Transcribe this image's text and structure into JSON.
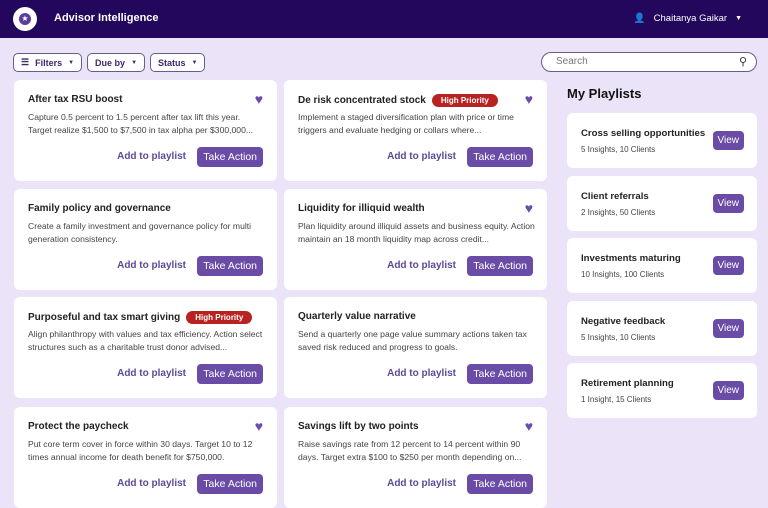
{
  "header": {
    "title": "Advisor Intelligence",
    "user": "Chaitanya Gaikar"
  },
  "toolbar": {
    "filters": "Filters",
    "due_by": "Due by",
    "status": "Status",
    "search_placeholder": "Search"
  },
  "cards": [
    {
      "title": "After tax RSU boost",
      "desc": "Capture 0.5 percent to 1.5 percent after tax lift this year. Target realize $1,500 to $7,500 in tax alpha per $300,000...",
      "badge": "",
      "favorite": true
    },
    {
      "title": "De risk concentrated stock",
      "desc": "Implement a staged diversification plan with price or time triggers and evaluate hedging or collars where...",
      "badge": "High Priority",
      "favorite": true
    },
    {
      "title": "Family policy and governance",
      "desc": "Create a family investment and governance policy for multi generation consistency.",
      "badge": "",
      "favorite": false
    },
    {
      "title": "Liquidity for illiquid wealth",
      "desc": "Plan liquidity around illiquid assets and business equity. Action maintain an 18 month liquidity map across credit...",
      "badge": "",
      "favorite": true
    },
    {
      "title": "Purposeful and tax smart giving",
      "desc": "Align philanthropy with values and tax efficiency. Action select structures such as a charitable trust donor advised...",
      "badge": "High Priority",
      "favorite": false
    },
    {
      "title": "Quarterly value narrative",
      "desc": "Send a quarterly one page value summary actions taken tax saved risk reduced and progress to goals.",
      "badge": "",
      "favorite": false
    },
    {
      "title": "Protect the paycheck",
      "desc": "Put core term cover in force within 30 days. Target 10 to 12 times annual income for death benefit for $750,000.",
      "badge": "",
      "favorite": true
    },
    {
      "title": "Savings lift by two points",
      "desc": "Raise savings rate from 12 percent to 14 percent within 90 days. Target extra $100 to $250 per month depending on...",
      "badge": "",
      "favorite": true
    }
  ],
  "card_actions": {
    "add": "Add to playlist",
    "take": "Take Action"
  },
  "playlists": {
    "heading": "My Playlists",
    "view": "View",
    "items": [
      {
        "title": "Cross selling opportunities",
        "sub": "5 Insights, 10 Clients"
      },
      {
        "title": "Client referrals",
        "sub": "2 Insights, 50 Clients"
      },
      {
        "title": "Investments maturing",
        "sub": "10 Insights, 100 Clients"
      },
      {
        "title": "Negative feedback",
        "sub": "5 Insights, 10 Clients"
      },
      {
        "title": "Retirement planning",
        "sub": "1 Insight, 15 Clients"
      }
    ]
  }
}
